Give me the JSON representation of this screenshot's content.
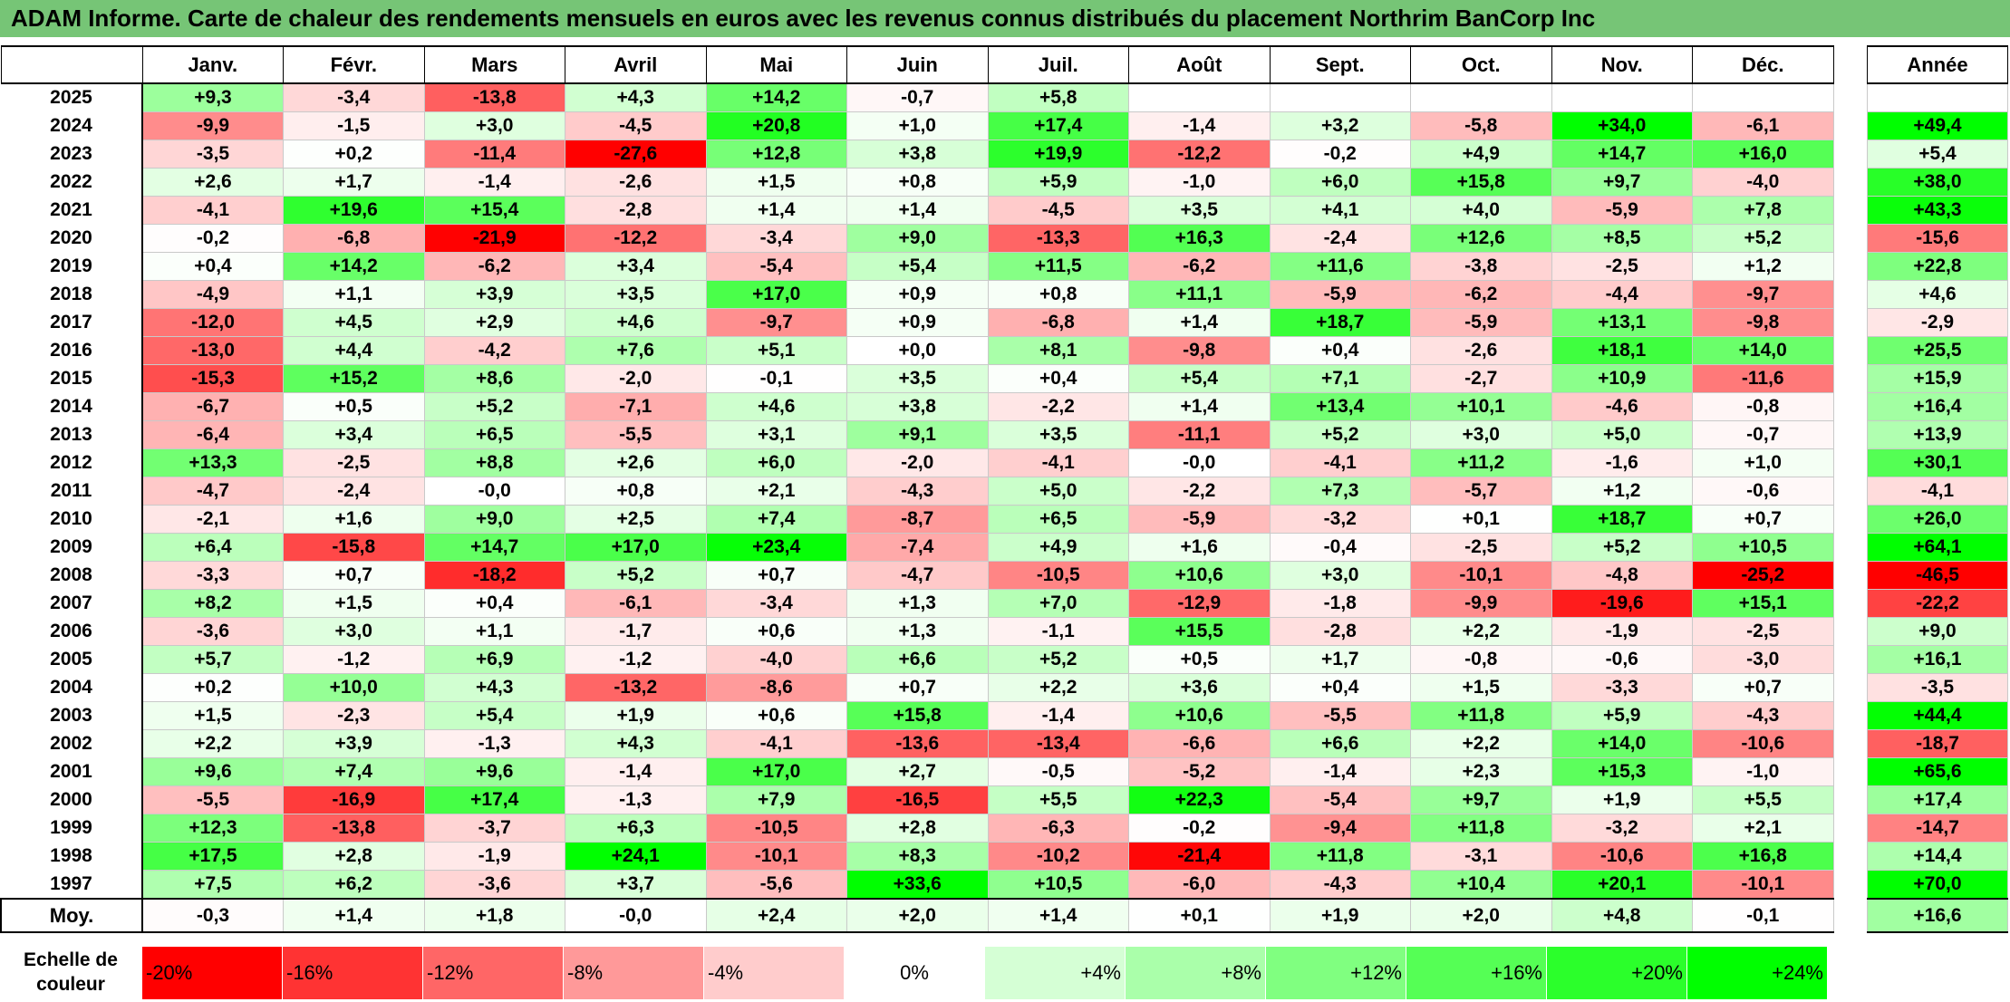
{
  "title": "ADAM Informe. Carte de chaleur des rendements mensuels en euros avec les revenus connus distribués du placement Northrim BanCorp Inc",
  "chart_data": {
    "type": "heatmap",
    "title": "ADAM Informe. Carte de chaleur des rendements mensuels en euros avec les revenus connus distribués du placement Northrim BanCorp Inc",
    "months": [
      "Janv.",
      "Févr.",
      "Mars",
      "Avril",
      "Mai",
      "Juin",
      "Juil.",
      "Août",
      "Sept.",
      "Oct.",
      "Nov.",
      "Déc."
    ],
    "year_header": "Année",
    "avg_label": "Moy.",
    "rows": [
      {
        "year": "2025",
        "values": [
          "+9,3",
          "-3,4",
          "-13,8",
          "+4,3",
          "+14,2",
          "-0,7",
          "+5,8",
          "",
          "",
          "",
          "",
          ""
        ],
        "annual": ""
      },
      {
        "year": "2024",
        "values": [
          "-9,9",
          "-1,5",
          "+3,0",
          "-4,5",
          "+20,8",
          "+1,0",
          "+17,4",
          "-1,4",
          "+3,2",
          "-5,8",
          "+34,0",
          "-6,1"
        ],
        "annual": "+49,4"
      },
      {
        "year": "2023",
        "values": [
          "-3,5",
          "+0,2",
          "-11,4",
          "-27,6",
          "+12,8",
          "+3,8",
          "+19,9",
          "-12,2",
          "-0,2",
          "+4,9",
          "+14,7",
          "+16,0"
        ],
        "annual": "+5,4"
      },
      {
        "year": "2022",
        "values": [
          "+2,6",
          "+1,7",
          "-1,4",
          "-2,6",
          "+1,5",
          "+0,8",
          "+5,9",
          "-1,0",
          "+6,0",
          "+15,8",
          "+9,7",
          "-4,0"
        ],
        "annual": "+38,0"
      },
      {
        "year": "2021",
        "values": [
          "-4,1",
          "+19,6",
          "+15,4",
          "-2,8",
          "+1,4",
          "+1,4",
          "-4,5",
          "+3,5",
          "+4,1",
          "+4,0",
          "-5,9",
          "+7,8"
        ],
        "annual": "+43,3"
      },
      {
        "year": "2020",
        "values": [
          "-0,2",
          "-6,8",
          "-21,9",
          "-12,2",
          "-3,4",
          "+9,0",
          "-13,3",
          "+16,3",
          "-2,4",
          "+12,6",
          "+8,5",
          "+5,2"
        ],
        "annual": "-15,6"
      },
      {
        "year": "2019",
        "values": [
          "+0,4",
          "+14,2",
          "-6,2",
          "+3,4",
          "-5,4",
          "+5,4",
          "+11,5",
          "-6,2",
          "+11,6",
          "-3,8",
          "-2,5",
          "+1,2"
        ],
        "annual": "+22,8"
      },
      {
        "year": "2018",
        "values": [
          "-4,9",
          "+1,1",
          "+3,9",
          "+3,5",
          "+17,0",
          "+0,9",
          "+0,8",
          "+11,1",
          "-5,9",
          "-6,2",
          "-4,4",
          "-9,7"
        ],
        "annual": "+4,6"
      },
      {
        "year": "2017",
        "values": [
          "-12,0",
          "+4,5",
          "+2,9",
          "+4,6",
          "-9,7",
          "+0,9",
          "-6,8",
          "+1,4",
          "+18,7",
          "-5,9",
          "+13,1",
          "-9,8"
        ],
        "annual": "-2,9"
      },
      {
        "year": "2016",
        "values": [
          "-13,0",
          "+4,4",
          "-4,2",
          "+7,6",
          "+5,1",
          "+0,0",
          "+8,1",
          "-9,8",
          "+0,4",
          "-2,6",
          "+18,1",
          "+14,0"
        ],
        "annual": "+25,5"
      },
      {
        "year": "2015",
        "values": [
          "-15,3",
          "+15,2",
          "+8,6",
          "-2,0",
          "-0,1",
          "+3,5",
          "+0,4",
          "+5,4",
          "+7,1",
          "-2,7",
          "+10,9",
          "-11,6"
        ],
        "annual": "+15,9"
      },
      {
        "year": "2014",
        "values": [
          "-6,7",
          "+0,5",
          "+5,2",
          "-7,1",
          "+4,6",
          "+3,8",
          "-2,2",
          "+1,4",
          "+13,4",
          "+10,1",
          "-4,6",
          "-0,8"
        ],
        "annual": "+16,4"
      },
      {
        "year": "2013",
        "values": [
          "-6,4",
          "+3,4",
          "+6,5",
          "-5,5",
          "+3,1",
          "+9,1",
          "+3,5",
          "-11,1",
          "+5,2",
          "+3,0",
          "+5,0",
          "-0,7"
        ],
        "annual": "+13,9"
      },
      {
        "year": "2012",
        "values": [
          "+13,3",
          "-2,5",
          "+8,8",
          "+2,6",
          "+6,0",
          "-2,0",
          "-4,1",
          "-0,0",
          "-4,1",
          "+11,2",
          "-1,6",
          "+1,0"
        ],
        "annual": "+30,1"
      },
      {
        "year": "2011",
        "values": [
          "-4,7",
          "-2,4",
          "-0,0",
          "+0,8",
          "+2,1",
          "-4,3",
          "+5,0",
          "-2,2",
          "+7,3",
          "-5,7",
          "+1,2",
          "-0,6"
        ],
        "annual": "-4,1"
      },
      {
        "year": "2010",
        "values": [
          "-2,1",
          "+1,6",
          "+9,0",
          "+2,5",
          "+7,4",
          "-8,7",
          "+6,5",
          "-5,9",
          "-3,2",
          "+0,1",
          "+18,7",
          "+0,7"
        ],
        "annual": "+26,0"
      },
      {
        "year": "2009",
        "values": [
          "+6,4",
          "-15,8",
          "+14,7",
          "+17,0",
          "+23,4",
          "-7,4",
          "+4,9",
          "+1,6",
          "-0,4",
          "-2,5",
          "+5,2",
          "+10,5"
        ],
        "annual": "+64,1"
      },
      {
        "year": "2008",
        "values": [
          "-3,3",
          "+0,7",
          "-18,2",
          "+5,2",
          "+0,7",
          "-4,7",
          "-10,5",
          "+10,6",
          "+3,0",
          "-10,1",
          "-4,8",
          "-25,2"
        ],
        "annual": "-46,5"
      },
      {
        "year": "2007",
        "values": [
          "+8,2",
          "+1,5",
          "+0,4",
          "-6,1",
          "-3,4",
          "+1,3",
          "+7,0",
          "-12,9",
          "-1,8",
          "-9,9",
          "-19,6",
          "+15,1"
        ],
        "annual": "-22,2"
      },
      {
        "year": "2006",
        "values": [
          "-3,6",
          "+3,0",
          "+1,1",
          "-1,7",
          "+0,6",
          "+1,3",
          "-1,1",
          "+15,5",
          "-2,8",
          "+2,2",
          "-1,9",
          "-2,5"
        ],
        "annual": "+9,0"
      },
      {
        "year": "2005",
        "values": [
          "+5,7",
          "-1,2",
          "+6,9",
          "-1,2",
          "-4,0",
          "+6,6",
          "+5,2",
          "+0,5",
          "+1,7",
          "-0,8",
          "-0,6",
          "-3,0"
        ],
        "annual": "+16,1"
      },
      {
        "year": "2004",
        "values": [
          "+0,2",
          "+10,0",
          "+4,3",
          "-13,2",
          "-8,6",
          "+0,7",
          "+2,2",
          "+3,6",
          "+0,4",
          "+1,5",
          "-3,3",
          "+0,7"
        ],
        "annual": "-3,5"
      },
      {
        "year": "2003",
        "values": [
          "+1,5",
          "-2,3",
          "+5,4",
          "+1,9",
          "+0,6",
          "+15,8",
          "-1,4",
          "+10,6",
          "-5,5",
          "+11,8",
          "+5,9",
          "-4,3"
        ],
        "annual": "+44,4"
      },
      {
        "year": "2002",
        "values": [
          "+2,2",
          "+3,9",
          "-1,3",
          "+4,3",
          "-4,1",
          "-13,6",
          "-13,4",
          "-6,6",
          "+6,6",
          "+2,2",
          "+14,0",
          "-10,6"
        ],
        "annual": "-18,7"
      },
      {
        "year": "2001",
        "values": [
          "+9,6",
          "+7,4",
          "+9,6",
          "-1,4",
          "+17,0",
          "+2,7",
          "-0,5",
          "-5,2",
          "-1,4",
          "+2,3",
          "+15,3",
          "-1,0"
        ],
        "annual": "+65,6"
      },
      {
        "year": "2000",
        "values": [
          "-5,5",
          "-16,9",
          "+17,4",
          "-1,3",
          "+7,9",
          "-16,5",
          "+5,5",
          "+22,3",
          "-5,4",
          "+9,7",
          "+1,9",
          "+5,5"
        ],
        "annual": "+17,4"
      },
      {
        "year": "1999",
        "values": [
          "+12,3",
          "-13,8",
          "-3,7",
          "+6,3",
          "-10,5",
          "+2,8",
          "-6,3",
          "-0,2",
          "-9,4",
          "+11,8",
          "-3,2",
          "+2,1"
        ],
        "annual": "-14,7"
      },
      {
        "year": "1998",
        "values": [
          "+17,5",
          "+2,8",
          "-1,9",
          "+24,1",
          "-10,1",
          "+8,3",
          "-10,2",
          "-21,4",
          "+11,8",
          "-3,1",
          "-10,6",
          "+16,8"
        ],
        "annual": "+14,4"
      },
      {
        "year": "1997",
        "values": [
          "+7,5",
          "+6,2",
          "-3,6",
          "+3,7",
          "-5,6",
          "+33,6",
          "+10,5",
          "-6,0",
          "-4,3",
          "+10,4",
          "+20,1",
          "-10,1"
        ],
        "annual": "+70,0"
      }
    ],
    "averages": [
      "-0,3",
      "+1,4",
      "+1,8",
      "-0,0",
      "+2,4",
      "+2,0",
      "+1,4",
      "+0,1",
      "+1,9",
      "+2,0",
      "+4,8",
      "-0,1"
    ],
    "average_annual": "+16,6",
    "scale_label": "Echelle de couleur",
    "scale": [
      "-20%",
      "-16%",
      "-12%",
      "-8%",
      "-4%",
      "0%",
      "+4%",
      "+8%",
      "+12%",
      "+16%",
      "+20%",
      "+24%"
    ],
    "colors": {
      "negative": "#ff0000",
      "positive": "#00ff00",
      "neutral": "#ffffff",
      "title_bg": "#76c576"
    }
  }
}
